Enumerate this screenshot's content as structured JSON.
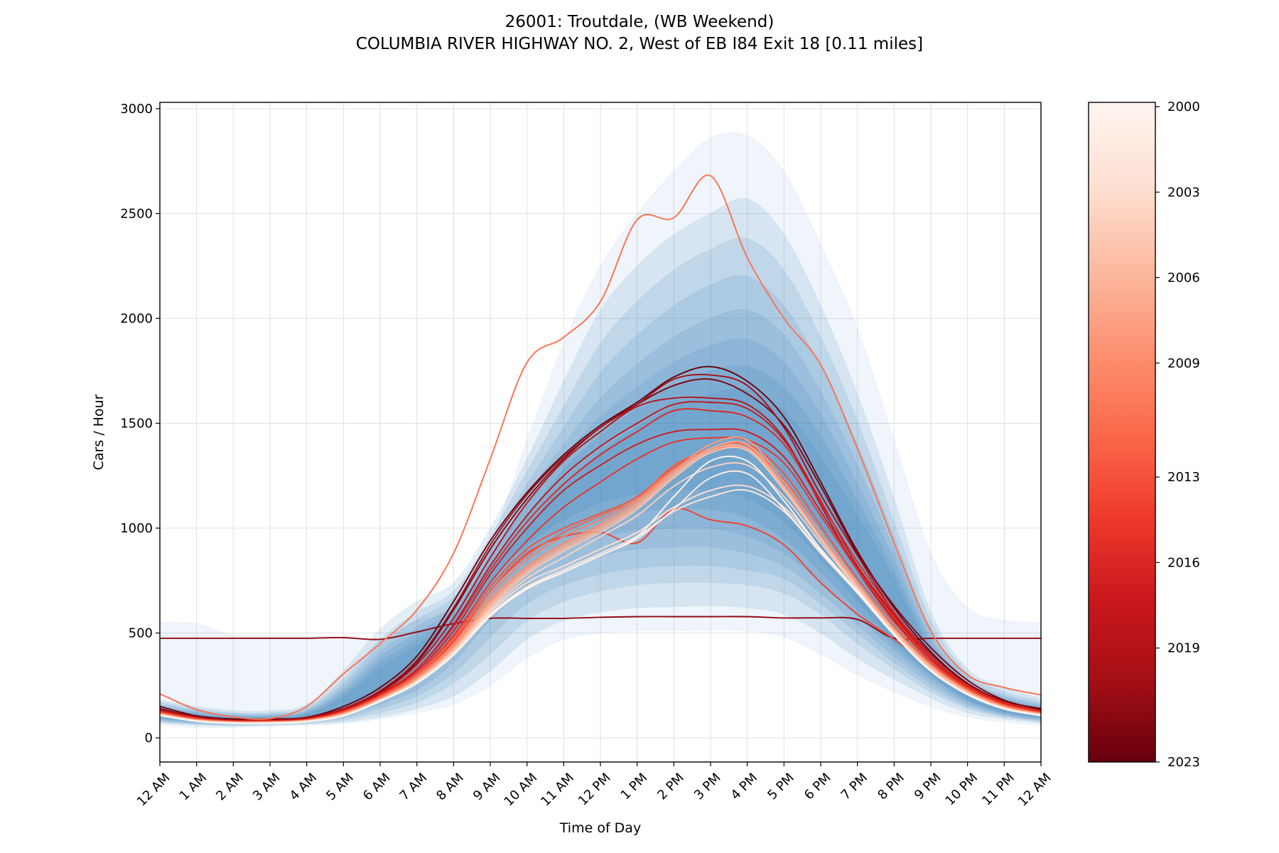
{
  "titles": {
    "line1": "26001: Troutdale, (WB Weekend)",
    "line2": "COLUMBIA RIVER HIGHWAY NO. 2, West of EB I84 Exit 18 [0.11 miles]"
  },
  "chart_data": {
    "type": "line",
    "xlabel": "Time of Day",
    "ylabel": "Cars / Hour",
    "xlim": [
      0,
      24
    ],
    "ylim": [
      -115,
      3030
    ],
    "grid": true,
    "x_ticks": [
      "12 AM",
      "1 AM",
      "2 AM",
      "3 AM",
      "4 AM",
      "5 AM",
      "6 AM",
      "7 AM",
      "8 AM",
      "9 AM",
      "10 AM",
      "11 AM",
      "12 PM",
      "1 PM",
      "2 PM",
      "3 PM",
      "4 PM",
      "5 PM",
      "6 PM",
      "7 PM",
      "8 PM",
      "9 PM",
      "10 PM",
      "11 PM",
      "12 AM"
    ],
    "y_ticks": [
      0,
      500,
      1000,
      1500,
      2000,
      2500,
      3000
    ],
    "colorbar": {
      "colormap": "Reds",
      "min": 2000,
      "max": 2023,
      "ticks": [
        2000,
        2003,
        2006,
        2009,
        2013,
        2016,
        2019,
        2023
      ],
      "top_color": "#fff5f0",
      "bottom_color": "#67000d"
    },
    "band_color": "#2171b5",
    "bands": [
      {
        "lower": [
          60,
          50,
          50,
          55,
          60,
          70,
          90,
          120,
          160,
          250,
          380,
          470,
          500,
          510,
          510,
          515,
          510,
          480,
          400,
          300,
          220,
          150,
          100,
          75,
          60
        ],
        "upper": [
          550,
          545,
          490,
          485,
          485,
          480,
          470,
          560,
          620,
          920,
          1420,
          1880,
          2250,
          2500,
          2700,
          2860,
          2870,
          2700,
          2350,
          1950,
          1420,
          880,
          620,
          560,
          550
        ]
      },
      {
        "lower": [
          70,
          60,
          55,
          60,
          65,
          75,
          100,
          140,
          200,
          320,
          470,
          560,
          600,
          620,
          625,
          630,
          620,
          590,
          500,
          380,
          280,
          190,
          120,
          90,
          70
        ],
        "upper": [
          180,
          150,
          130,
          130,
          160,
          320,
          520,
          650,
          740,
          1000,
          1330,
          1700,
          2040,
          2250,
          2400,
          2500,
          2570,
          2400,
          2060,
          1640,
          1140,
          600,
          330,
          240,
          190
        ]
      },
      {
        "lower": [
          75,
          65,
          60,
          63,
          70,
          85,
          120,
          170,
          260,
          400,
          560,
          650,
          700,
          730,
          740,
          740,
          730,
          690,
          590,
          450,
          330,
          220,
          140,
          100,
          78
        ],
        "upper": [
          170,
          140,
          120,
          120,
          145,
          280,
          470,
          600,
          700,
          960,
          1270,
          1580,
          1880,
          2080,
          2230,
          2330,
          2380,
          2230,
          1910,
          1510,
          1030,
          560,
          310,
          220,
          175
        ]
      },
      {
        "lower": [
          80,
          68,
          63,
          66,
          74,
          95,
          140,
          200,
          310,
          480,
          640,
          730,
          780,
          810,
          820,
          820,
          800,
          760,
          640,
          500,
          360,
          240,
          150,
          105,
          82
        ],
        "upper": [
          160,
          132,
          115,
          114,
          138,
          260,
          440,
          565,
          670,
          920,
          1210,
          1480,
          1740,
          1920,
          2060,
          2160,
          2200,
          2060,
          1770,
          1400,
          960,
          520,
          290,
          205,
          165
        ]
      },
      {
        "lower": [
          85,
          72,
          66,
          69,
          78,
          105,
          160,
          230,
          360,
          560,
          720,
          820,
          870,
          900,
          910,
          910,
          880,
          820,
          690,
          540,
          390,
          260,
          160,
          110,
          86
        ],
        "upper": [
          152,
          126,
          110,
          108,
          130,
          240,
          410,
          530,
          640,
          890,
          1160,
          1400,
          1620,
          1780,
          1910,
          2000,
          2040,
          1920,
          1650,
          1300,
          900,
          490,
          275,
          195,
          157
        ]
      },
      {
        "lower": [
          90,
          76,
          69,
          72,
          82,
          115,
          180,
          260,
          410,
          640,
          800,
          900,
          960,
          990,
          1000,
          1000,
          960,
          880,
          740,
          580,
          420,
          280,
          170,
          115,
          90
        ],
        "upper": [
          145,
          120,
          106,
          104,
          124,
          225,
          385,
          500,
          615,
          860,
          1110,
          1340,
          1530,
          1670,
          1790,
          1870,
          1900,
          1790,
          1540,
          1210,
          850,
          465,
          262,
          186,
          150
        ]
      },
      {
        "lower": [
          95,
          80,
          72,
          75,
          86,
          125,
          200,
          290,
          450,
          700,
          860,
          970,
          1040,
          1080,
          1090,
          1090,
          1050,
          950,
          790,
          610,
          440,
          295,
          180,
          120,
          95
        ],
        "upper": [
          138,
          115,
          102,
          100,
          118,
          210,
          360,
          470,
          590,
          830,
          1060,
          1280,
          1440,
          1570,
          1680,
          1750,
          1770,
          1670,
          1440,
          1130,
          800,
          440,
          250,
          178,
          143
        ]
      },
      {
        "lower": [
          100,
          84,
          75,
          78,
          90,
          135,
          220,
          320,
          490,
          750,
          920,
          1040,
          1120,
          1160,
          1180,
          1180,
          1140,
          1030,
          850,
          650,
          460,
          305,
          185,
          125,
          100
        ],
        "upper": [
          132,
          110,
          98,
          96,
          112,
          195,
          335,
          440,
          565,
          800,
          1010,
          1210,
          1360,
          1480,
          1580,
          1640,
          1660,
          1560,
          1340,
          1060,
          760,
          420,
          240,
          172,
          137
        ]
      }
    ],
    "flat_series": {
      "year": 2021,
      "values": [
        475,
        475,
        475,
        475,
        475,
        478,
        470,
        505,
        545,
        570,
        570,
        570,
        575,
        578,
        578,
        578,
        578,
        572,
        572,
        565,
        475,
        475,
        475,
        475,
        475
      ]
    },
    "series": [
      {
        "year": 2011,
        "values": [
          210,
          135,
          100,
          92,
          150,
          305,
          450,
          610,
          880,
          1330,
          1790,
          1910,
          2080,
          2470,
          2480,
          2680,
          2290,
          2000,
          1780,
          1380,
          930,
          510,
          300,
          240,
          205
        ]
      },
      {
        "year": 2022,
        "values": [
          140,
          100,
          85,
          85,
          95,
          140,
          220,
          360,
          610,
          900,
          1140,
          1330,
          1480,
          1590,
          1680,
          1710,
          1640,
          1490,
          1200,
          880,
          630,
          430,
          275,
          180,
          135
        ]
      },
      {
        "year": 2023,
        "values": [
          150,
          105,
          90,
          90,
          98,
          150,
          240,
          390,
          650,
          940,
          1170,
          1350,
          1490,
          1600,
          1720,
          1770,
          1700,
          1530,
          1220,
          890,
          620,
          410,
          260,
          175,
          140
        ]
      },
      {
        "year": 2020,
        "values": [
          135,
          100,
          82,
          85,
          95,
          140,
          225,
          370,
          620,
          920,
          1160,
          1340,
          1480,
          1590,
          1710,
          1730,
          1680,
          1480,
          1160,
          870,
          600,
          400,
          255,
          170,
          130
        ]
      },
      {
        "year": 2019,
        "values": [
          130,
          98,
          84,
          84,
          92,
          138,
          215,
          350,
          570,
          860,
          1120,
          1320,
          1460,
          1580,
          1620,
          1620,
          1590,
          1430,
          1110,
          800,
          560,
          370,
          245,
          165,
          125
        ]
      },
      {
        "year": 2018,
        "values": [
          132,
          96,
          82,
          82,
          90,
          132,
          210,
          330,
          540,
          820,
          1060,
          1250,
          1390,
          1500,
          1590,
          1600,
          1570,
          1420,
          1130,
          820,
          590,
          380,
          250,
          168,
          128
        ]
      },
      {
        "year": 2017,
        "values": [
          128,
          94,
          80,
          80,
          88,
          128,
          200,
          320,
          510,
          780,
          1000,
          1180,
          1300,
          1400,
          1460,
          1470,
          1460,
          1340,
          1080,
          810,
          580,
          380,
          245,
          165,
          125
        ]
      },
      {
        "year": 2016,
        "values": [
          126,
          94,
          80,
          80,
          88,
          128,
          205,
          330,
          530,
          800,
          1030,
          1210,
          1350,
          1460,
          1560,
          1560,
          1530,
          1400,
          1120,
          840,
          600,
          390,
          250,
          170,
          128
        ]
      },
      {
        "year": 2015,
        "values": [
          124,
          92,
          79,
          79,
          87,
          126,
          200,
          310,
          490,
          740,
          940,
          1100,
          1220,
          1330,
          1410,
          1430,
          1420,
          1310,
          1060,
          800,
          570,
          370,
          240,
          160,
          122
        ]
      },
      {
        "year": 2014,
        "values": [
          122,
          90,
          78,
          78,
          86,
          122,
          195,
          300,
          460,
          700,
          880,
          960,
          980,
          930,
          1090,
          1040,
          1010,
          920,
          740,
          590,
          470,
          340,
          230,
          155,
          120
        ]
      },
      {
        "year": 2013,
        "values": [
          120,
          90,
          78,
          78,
          86,
          124,
          200,
          305,
          480,
          720,
          900,
          1000,
          1070,
          1150,
          1290,
          1380,
          1400,
          1260,
          1010,
          760,
          550,
          360,
          235,
          158,
          120
        ]
      },
      {
        "year": 2012,
        "values": [
          118,
          88,
          77,
          77,
          85,
          120,
          195,
          300,
          470,
          700,
          870,
          980,
          1060,
          1140,
          1300,
          1370,
          1380,
          1230,
          980,
          740,
          530,
          350,
          230,
          155,
          118
        ]
      },
      {
        "year": 2010,
        "values": [
          116,
          86,
          76,
          76,
          84,
          118,
          190,
          290,
          450,
          680,
          850,
          960,
          1040,
          1140,
          1280,
          1380,
          1390,
          1200,
          950,
          720,
          510,
          340,
          225,
          150,
          116
        ]
      },
      {
        "year": 2009,
        "values": [
          115,
          86,
          75,
          75,
          83,
          116,
          188,
          285,
          440,
          660,
          820,
          930,
          1020,
          1130,
          1270,
          1360,
          1380,
          1200,
          960,
          730,
          515,
          345,
          225,
          150,
          115
        ]
      },
      {
        "year": 2008,
        "values": [
          114,
          85,
          74,
          74,
          82,
          115,
          185,
          280,
          430,
          650,
          810,
          920,
          1010,
          1120,
          1270,
          1400,
          1420,
          1220,
          980,
          740,
          520,
          345,
          222,
          148,
          114
        ]
      },
      {
        "year": 2007,
        "values": [
          113,
          84,
          74,
          74,
          82,
          114,
          184,
          278,
          425,
          640,
          800,
          910,
          1000,
          1110,
          1260,
          1380,
          1400,
          1200,
          960,
          730,
          515,
          340,
          220,
          146,
          113
        ]
      },
      {
        "year": 2006,
        "values": [
          112,
          83,
          73,
          73,
          81,
          112,
          182,
          275,
          420,
          630,
          790,
          900,
          990,
          1100,
          1250,
          1370,
          1380,
          1190,
          950,
          720,
          510,
          335,
          218,
          145,
          112
        ]
      },
      {
        "year": 2005,
        "values": [
          111,
          82,
          72,
          72,
          80,
          110,
          180,
          272,
          415,
          620,
          780,
          890,
          980,
          1090,
          1240,
          1360,
          1370,
          1180,
          945,
          715,
          505,
          330,
          215,
          144,
          111
        ]
      },
      {
        "year": 2004,
        "values": [
          110,
          82,
          72,
          72,
          80,
          110,
          180,
          270,
          410,
          610,
          760,
          860,
          960,
          1060,
          1200,
          1290,
          1300,
          1150,
          930,
          710,
          500,
          325,
          212,
          142,
          110
        ]
      },
      {
        "year": 2003,
        "values": [
          109,
          81,
          71,
          71,
          79,
          108,
          178,
          268,
          405,
          600,
          740,
          820,
          900,
          980,
          1100,
          1180,
          1200,
          1100,
          900,
          700,
          495,
          320,
          210,
          140,
          109
        ]
      },
      {
        "year": 2002,
        "values": [
          108,
          80,
          70,
          70,
          78,
          106,
          176,
          265,
          400,
          590,
          720,
          800,
          880,
          960,
          1080,
          1150,
          1180,
          1080,
          880,
          690,
          490,
          318,
          208,
          139,
          108
        ]
      },
      {
        "year": 2001,
        "values": [
          107,
          80,
          70,
          70,
          78,
          106,
          175,
          262,
          398,
          585,
          715,
          790,
          870,
          950,
          1090,
          1240,
          1260,
          1090,
          890,
          695,
          492,
          318,
          207,
          138,
          107
        ]
      },
      {
        "year": 2000,
        "values": [
          106,
          79,
          69,
          69,
          77,
          105,
          174,
          260,
          395,
          580,
          710,
          790,
          870,
          960,
          1150,
          1320,
          1320,
          1130,
          900,
          700,
          495,
          320,
          206,
          138,
          106
        ]
      }
    ]
  }
}
